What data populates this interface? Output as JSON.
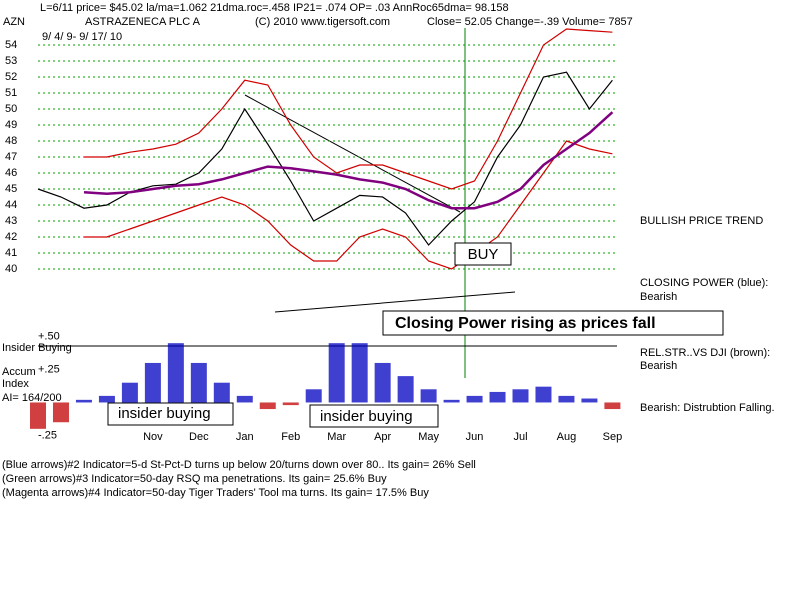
{
  "header": {
    "line1": "L=6/11   price= $45.02  la/ma=1.062 21dma.roc=.458 IP21= .074 OP= .03 AnnRoc65dma= 98.158",
    "symbol": "AZN",
    "name": "ASTRAZENECA PLC A",
    "copyright": "(C) 2010 www.tigersoft.com",
    "quote": "Close=  52.05  Change=-.39 Volume= 7857",
    "dates": "9/ 4/ 9- 9/ 17/ 10"
  },
  "chart_data": [
    {
      "type": "line",
      "xlim": [
        -1.5,
        11.1
      ],
      "ylim": [
        39.5,
        55
      ],
      "yticks": [
        40,
        41,
        42,
        43,
        44,
        45,
        46,
        47,
        48,
        49,
        50,
        51,
        52,
        53,
        54
      ],
      "grid": true,
      "x": [
        -1.5,
        -1,
        -0.5,
        0,
        0.5,
        1,
        1.5,
        2,
        2.5,
        3,
        3.5,
        4,
        4.5,
        5,
        5.5,
        6,
        6.5,
        7,
        7.5,
        8,
        8.5,
        9,
        9.5,
        10,
        10.5,
        11
      ],
      "series": [
        {
          "color": "#000000",
          "values": [
            45,
            44.5,
            43.8,
            44,
            44.8,
            45.2,
            45.3,
            46,
            47.5,
            50,
            47.8,
            45.5,
            43,
            43.8,
            44.6,
            44.5,
            43.5,
            41.5,
            43,
            44.2,
            47,
            49,
            52,
            52.3,
            50,
            51.8
          ]
        },
        {
          "color": "#d00000",
          "values": [
            null,
            null,
            47,
            47,
            47.3,
            47.5,
            47.8,
            48.5,
            50,
            51.8,
            51.5,
            49,
            47,
            46,
            46.5,
            46.5,
            46,
            45.5,
            45,
            45.5,
            48,
            51,
            54,
            55,
            54.9,
            54.8
          ]
        },
        {
          "color": "#d00000",
          "values": [
            null,
            null,
            42,
            42,
            42.5,
            43,
            43.5,
            44,
            44.5,
            44,
            43,
            41.5,
            40.5,
            40.5,
            42,
            42.5,
            42,
            40.5,
            40,
            41,
            42,
            44,
            46,
            48,
            47.5,
            47.2
          ]
        },
        {
          "color": "#800080",
          "values": [
            null,
            null,
            44.8,
            44.7,
            44.8,
            45,
            45.2,
            45.3,
            45.6,
            46,
            46.4,
            46.3,
            46.1,
            45.9,
            45.6,
            45.4,
            45,
            44.3,
            43.8,
            43.8,
            44.2,
            45,
            46.5,
            47.5,
            48.5,
            49.8
          ]
        }
      ]
    },
    {
      "type": "bar",
      "xlim": [
        -1.5,
        11.1
      ],
      "ylim": [
        -0.3,
        0.55
      ],
      "yticks": [
        {
          "value": 0.5,
          "label": "+.50"
        },
        {
          "value": 0.25,
          "label": "+.25"
        },
        {
          "value": -0.25,
          "label": "-.25"
        }
      ],
      "xticks": [
        {
          "value": 1,
          "label": "Nov"
        },
        {
          "value": 2,
          "label": "Dec"
        },
        {
          "value": 3,
          "label": "Jan"
        },
        {
          "value": 4,
          "label": "Feb"
        },
        {
          "value": 5,
          "label": "Mar"
        },
        {
          "value": 6,
          "label": "Apr"
        },
        {
          "value": 7,
          "label": "May"
        },
        {
          "value": 8,
          "label": "Jun"
        },
        {
          "value": 9,
          "label": "Jul"
        },
        {
          "value": 10,
          "label": "Aug"
        },
        {
          "value": 11,
          "label": "Sep"
        }
      ],
      "positive_color": "#0000c0",
      "negative_color": "#c00000",
      "x": [
        -1.5,
        -1,
        -0.5,
        0,
        0.5,
        1,
        1.5,
        2,
        2.5,
        3,
        3.5,
        4,
        4.5,
        5,
        5.5,
        6,
        6.5,
        7,
        7.5,
        8,
        8.5,
        9,
        9.5,
        10,
        10.5,
        11
      ],
      "values": [
        -0.2,
        -0.15,
        0.02,
        0.05,
        0.15,
        0.3,
        0.45,
        0.3,
        0.15,
        0.05,
        -0.05,
        -0.02,
        0.1,
        0.45,
        0.45,
        0.3,
        0.2,
        0.1,
        0.02,
        0.05,
        0.08,
        0.1,
        0.12,
        0.05,
        0.03,
        -0.05
      ]
    }
  ],
  "annotations": {
    "buy": "BUY",
    "trend": "BULLISH PRICE TREND",
    "cp_title": "CLOSING POWER (blue):",
    "cp_value": "Bearish",
    "cp_note": "Closing Power rising as prices fall",
    "insider": "Insider Buying",
    "accum1": "Accum",
    "accum2": "Index",
    "ai": "AI= 164/200",
    "rs_title": "REL.STR..VS DJI (brown):",
    "rs_value": "Bearish",
    "dist": "Bearish: Distrubtion Falling.",
    "ib1": "insider buying",
    "ib2": "insider buying"
  },
  "footer": [
    "(Blue arrows)#2 Indicator=5-d St-Pct-D turns up below 20/turns down over 80.. Its gain= 26% Sell",
    "(Green arrows)#3 Indicator=50-day RSQ ma penetrations.  Its gain= 25.6% Buy",
    "(Magenta arrows)#4 Indicator=50-day Tiger Traders' Tool ma turns.  Its gain= 17.5% Buy"
  ]
}
